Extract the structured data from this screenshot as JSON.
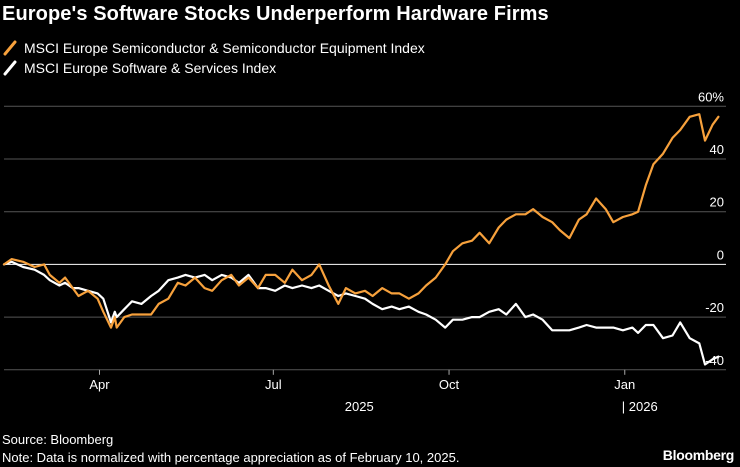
{
  "chart_data": {
    "type": "line",
    "title": "Europe's Software Stocks Underperform Hardware Firms",
    "subtitle": "",
    "xlabel": "",
    "ylabel": "",
    "yunit": "%",
    "ylim": [
      -41,
      61
    ],
    "yticks": [
      60,
      40,
      20,
      0,
      -20,
      -40
    ],
    "ytick_labels": [
      "60%",
      "40",
      "20",
      "0",
      "-20",
      "-40"
    ],
    "xlim": [
      "2025-02-10",
      "2026-02-23"
    ],
    "xticks": [
      {
        "date": "2025-04-01",
        "label": "Apr"
      },
      {
        "date": "2025-07-01",
        "label": "Jul"
      },
      {
        "date": "2025-10-01",
        "label": "Oct"
      },
      {
        "date": "2026-01-01",
        "label": "Jan"
      }
    ],
    "year_labels": [
      {
        "date": "2025-08-15",
        "label": "2025"
      },
      {
        "date": "2026-01-01",
        "label": "| 2026"
      }
    ],
    "grid": true,
    "legend_position": "top-left",
    "series": [
      {
        "name": "MSCI Europe Semiconductor & Semiconductor Equipment Index",
        "color": "#f7a13c",
        "points": [
          [
            "2025-02-10",
            0
          ],
          [
            "2025-02-14",
            2
          ],
          [
            "2025-02-20",
            1
          ],
          [
            "2025-02-26",
            -1
          ],
          [
            "2025-03-03",
            0
          ],
          [
            "2025-03-06",
            -4
          ],
          [
            "2025-03-11",
            -7
          ],
          [
            "2025-03-14",
            -5
          ],
          [
            "2025-03-18",
            -9
          ],
          [
            "2025-03-21",
            -12
          ],
          [
            "2025-03-26",
            -10
          ],
          [
            "2025-03-31",
            -13
          ],
          [
            "2025-04-03",
            -18
          ],
          [
            "2025-04-07",
            -24
          ],
          [
            "2025-04-09",
            -20
          ],
          [
            "2025-04-10",
            -24
          ],
          [
            "2025-04-14",
            -20
          ],
          [
            "2025-04-18",
            -19
          ],
          [
            "2025-04-23",
            -19
          ],
          [
            "2025-04-28",
            -19
          ],
          [
            "2025-05-02",
            -15
          ],
          [
            "2025-05-07",
            -13
          ],
          [
            "2025-05-12",
            -7
          ],
          [
            "2025-05-16",
            -8
          ],
          [
            "2025-05-21",
            -5
          ],
          [
            "2025-05-26",
            -9
          ],
          [
            "2025-05-30",
            -10
          ],
          [
            "2025-06-04",
            -6
          ],
          [
            "2025-06-09",
            -4
          ],
          [
            "2025-06-13",
            -8
          ],
          [
            "2025-06-18",
            -5
          ],
          [
            "2025-06-23",
            -9
          ],
          [
            "2025-06-27",
            -4
          ],
          [
            "2025-07-02",
            -4
          ],
          [
            "2025-07-07",
            -7
          ],
          [
            "2025-07-11",
            -2
          ],
          [
            "2025-07-16",
            -6
          ],
          [
            "2025-07-21",
            -4
          ],
          [
            "2025-07-25",
            0
          ],
          [
            "2025-07-30",
            -8
          ],
          [
            "2025-08-04",
            -15
          ],
          [
            "2025-08-08",
            -9
          ],
          [
            "2025-08-13",
            -11
          ],
          [
            "2025-08-18",
            -10
          ],
          [
            "2025-08-22",
            -12
          ],
          [
            "2025-08-27",
            -9
          ],
          [
            "2025-09-01",
            -11
          ],
          [
            "2025-09-05",
            -11
          ],
          [
            "2025-09-10",
            -13
          ],
          [
            "2025-09-15",
            -11
          ],
          [
            "2025-09-19",
            -8
          ],
          [
            "2025-09-24",
            -5
          ],
          [
            "2025-09-29",
            0
          ],
          [
            "2025-10-03",
            5
          ],
          [
            "2025-10-08",
            8
          ],
          [
            "2025-10-13",
            9
          ],
          [
            "2025-10-17",
            12
          ],
          [
            "2025-10-22",
            8
          ],
          [
            "2025-10-27",
            14
          ],
          [
            "2025-10-31",
            17
          ],
          [
            "2025-11-05",
            19
          ],
          [
            "2025-11-10",
            19
          ],
          [
            "2025-11-14",
            21
          ],
          [
            "2025-11-19",
            18
          ],
          [
            "2025-11-24",
            16
          ],
          [
            "2025-11-28",
            13
          ],
          [
            "2025-12-03",
            10
          ],
          [
            "2025-12-08",
            17
          ],
          [
            "2025-12-12",
            19
          ],
          [
            "2025-12-17",
            25
          ],
          [
            "2025-12-22",
            21
          ],
          [
            "2025-12-26",
            16
          ],
          [
            "2025-12-31",
            18
          ],
          [
            "2026-01-05",
            19
          ],
          [
            "2026-01-08",
            20
          ],
          [
            "2026-01-12",
            30
          ],
          [
            "2026-01-16",
            38
          ],
          [
            "2026-01-21",
            42
          ],
          [
            "2026-01-26",
            48
          ],
          [
            "2026-01-30",
            51
          ],
          [
            "2026-02-04",
            56
          ],
          [
            "2026-02-09",
            57
          ],
          [
            "2026-02-12",
            47
          ],
          [
            "2026-02-16",
            53
          ],
          [
            "2026-02-19",
            56
          ]
        ]
      },
      {
        "name": "MSCI Europe Software & Services Index",
        "color": "#ffffff",
        "points": [
          [
            "2025-02-10",
            0
          ],
          [
            "2025-02-14",
            1
          ],
          [
            "2025-02-20",
            -1
          ],
          [
            "2025-02-26",
            -2
          ],
          [
            "2025-03-03",
            -4
          ],
          [
            "2025-03-06",
            -6
          ],
          [
            "2025-03-11",
            -8
          ],
          [
            "2025-03-14",
            -7
          ],
          [
            "2025-03-18",
            -9
          ],
          [
            "2025-03-21",
            -9
          ],
          [
            "2025-03-26",
            -10
          ],
          [
            "2025-03-31",
            -11
          ],
          [
            "2025-04-03",
            -13
          ],
          [
            "2025-04-07",
            -22
          ],
          [
            "2025-04-09",
            -18
          ],
          [
            "2025-04-10",
            -20
          ],
          [
            "2025-04-14",
            -17
          ],
          [
            "2025-04-18",
            -14
          ],
          [
            "2025-04-23",
            -15
          ],
          [
            "2025-04-28",
            -12
          ],
          [
            "2025-05-02",
            -10
          ],
          [
            "2025-05-07",
            -6
          ],
          [
            "2025-05-12",
            -5
          ],
          [
            "2025-05-16",
            -4
          ],
          [
            "2025-05-21",
            -5
          ],
          [
            "2025-05-26",
            -4
          ],
          [
            "2025-05-30",
            -6
          ],
          [
            "2025-06-04",
            -4
          ],
          [
            "2025-06-09",
            -5
          ],
          [
            "2025-06-13",
            -7
          ],
          [
            "2025-06-18",
            -4
          ],
          [
            "2025-06-23",
            -9
          ],
          [
            "2025-06-27",
            -9
          ],
          [
            "2025-07-02",
            -10
          ],
          [
            "2025-07-07",
            -8
          ],
          [
            "2025-07-11",
            -9
          ],
          [
            "2025-07-16",
            -8
          ],
          [
            "2025-07-21",
            -9
          ],
          [
            "2025-07-25",
            -8
          ],
          [
            "2025-07-30",
            -10
          ],
          [
            "2025-08-04",
            -12
          ],
          [
            "2025-08-08",
            -11
          ],
          [
            "2025-08-13",
            -12
          ],
          [
            "2025-08-18",
            -13
          ],
          [
            "2025-08-22",
            -15
          ],
          [
            "2025-08-27",
            -17
          ],
          [
            "2025-09-01",
            -16
          ],
          [
            "2025-09-05",
            -17
          ],
          [
            "2025-09-10",
            -16
          ],
          [
            "2025-09-15",
            -18
          ],
          [
            "2025-09-19",
            -19
          ],
          [
            "2025-09-24",
            -21
          ],
          [
            "2025-09-29",
            -24
          ],
          [
            "2025-10-03",
            -21
          ],
          [
            "2025-10-08",
            -21
          ],
          [
            "2025-10-13",
            -20
          ],
          [
            "2025-10-17",
            -20
          ],
          [
            "2025-10-22",
            -18
          ],
          [
            "2025-10-27",
            -17
          ],
          [
            "2025-10-31",
            -19
          ],
          [
            "2025-11-05",
            -15
          ],
          [
            "2025-11-10",
            -20
          ],
          [
            "2025-11-14",
            -19
          ],
          [
            "2025-11-19",
            -21
          ],
          [
            "2025-11-24",
            -25
          ],
          [
            "2025-11-28",
            -25
          ],
          [
            "2025-12-03",
            -25
          ],
          [
            "2025-12-08",
            -24
          ],
          [
            "2025-12-12",
            -23
          ],
          [
            "2025-12-17",
            -24
          ],
          [
            "2025-12-22",
            -24
          ],
          [
            "2025-12-26",
            -24
          ],
          [
            "2025-12-31",
            -25
          ],
          [
            "2026-01-05",
            -24
          ],
          [
            "2026-01-08",
            -26
          ],
          [
            "2026-01-12",
            -23
          ],
          [
            "2026-01-16",
            -23
          ],
          [
            "2026-01-21",
            -28
          ],
          [
            "2026-01-26",
            -27
          ],
          [
            "2026-01-30",
            -22
          ],
          [
            "2026-02-04",
            -28
          ],
          [
            "2026-02-09",
            -30
          ],
          [
            "2026-02-12",
            -38
          ],
          [
            "2026-02-16",
            -36
          ],
          [
            "2026-02-19",
            -35
          ]
        ]
      }
    ]
  },
  "footer": {
    "source": "Source: Bloomberg",
    "note": "Note: Data is normalized with percentage appreciation as of February 10, 2025."
  },
  "brand": "Bloomberg"
}
